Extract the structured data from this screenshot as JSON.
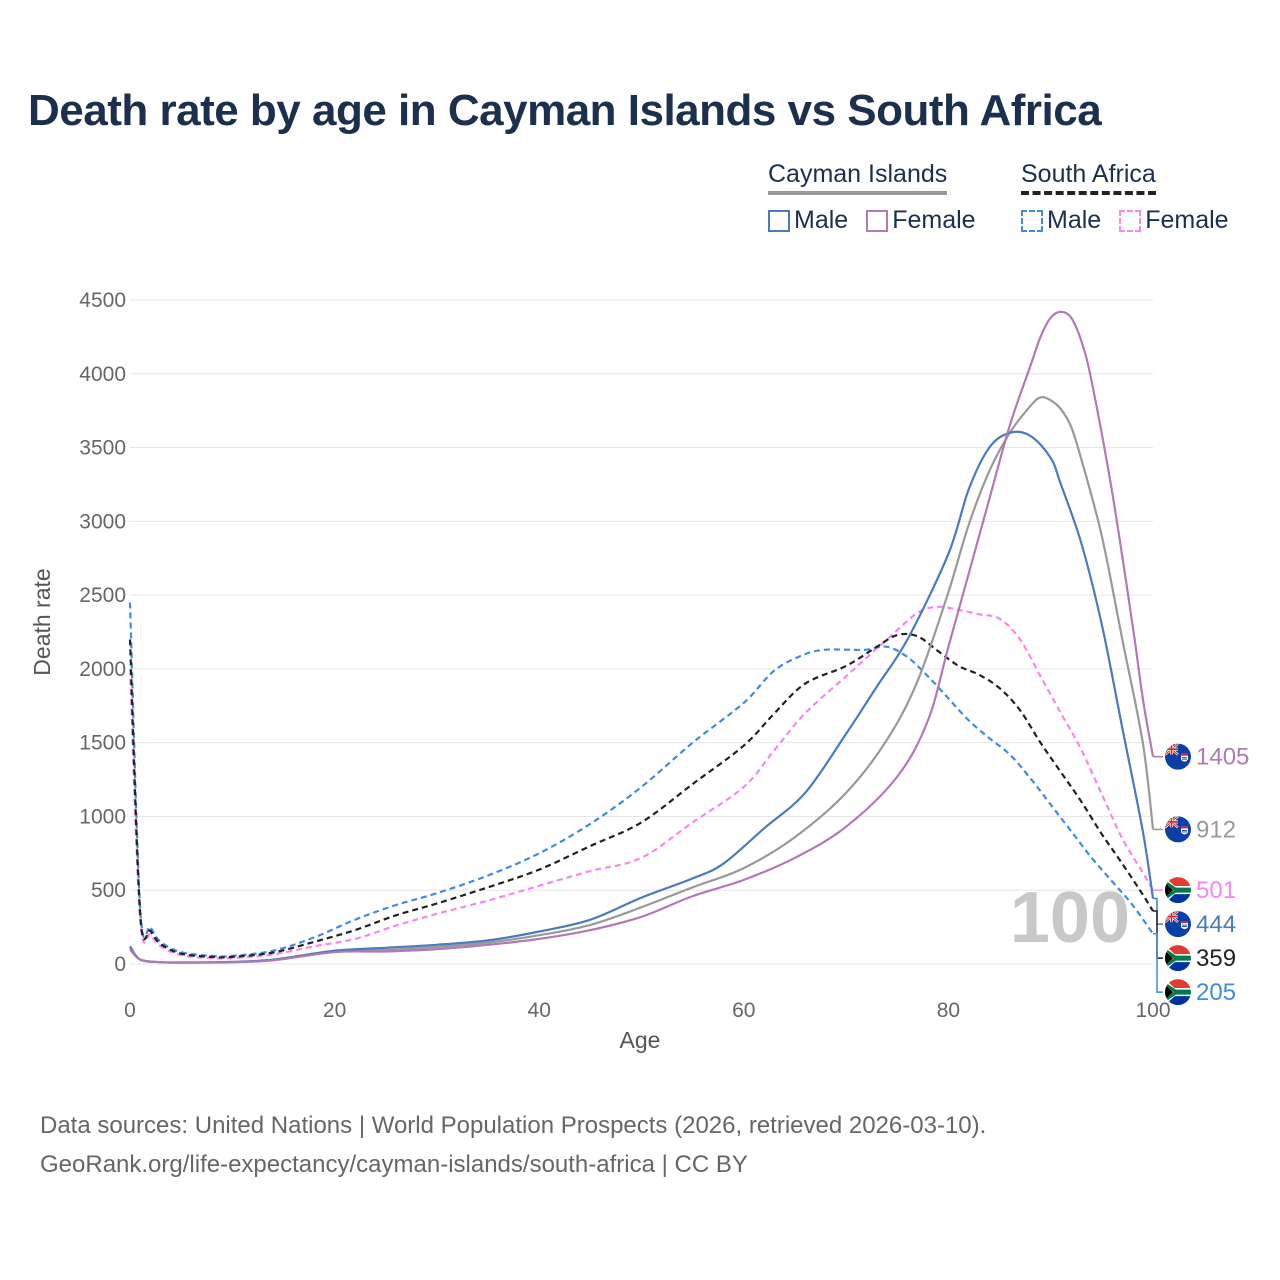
{
  "title": "Death rate by age in Cayman Islands vs South Africa",
  "legend": {
    "group1": {
      "title": "Cayman Islands",
      "male": "Male",
      "female": "Female"
    },
    "group2": {
      "title": "South Africa",
      "male": "Male",
      "female": "Female"
    }
  },
  "footer": {
    "line1": "Data sources: United Nations | World Population Prospects (2026, retrieved 2026-03-10).",
    "line2": "GeoRank.org/life-expectancy/cayman-islands/south-africa | CC BY"
  },
  "colors": {
    "cayman_male": "#4a7abf",
    "cayman_female": "#b07ab4",
    "cayman_total": "#999999",
    "sa_male": "#3f8be6",
    "sa_female": "#f787ee",
    "sa_total": "#222222"
  },
  "chart_data": {
    "type": "line",
    "xlabel": "Age",
    "ylabel": "Death rate",
    "xlim": [
      0,
      100
    ],
    "ylim": [
      0,
      4500
    ],
    "xticks": [
      0,
      20,
      40,
      60,
      80,
      100
    ],
    "yticks": [
      0,
      500,
      1000,
      1500,
      2000,
      2500,
      3000,
      3500,
      4000,
      4500
    ],
    "watermark": "100",
    "series": [
      {
        "name": "Cayman Islands Male",
        "key": "cayman_male",
        "style": "solid",
        "end_label": "444",
        "points": [
          [
            0,
            120
          ],
          [
            1,
            30
          ],
          [
            3,
            12
          ],
          [
            5,
            10
          ],
          [
            10,
            15
          ],
          [
            14,
            30
          ],
          [
            20,
            90
          ],
          [
            25,
            110
          ],
          [
            30,
            130
          ],
          [
            35,
            160
          ],
          [
            40,
            220
          ],
          [
            45,
            300
          ],
          [
            50,
            450
          ],
          [
            55,
            580
          ],
          [
            58,
            680
          ],
          [
            62,
            920
          ],
          [
            66,
            1160
          ],
          [
            70,
            1560
          ],
          [
            73,
            1880
          ],
          [
            76,
            2200
          ],
          [
            80,
            2780
          ],
          [
            82,
            3220
          ],
          [
            84,
            3500
          ],
          [
            86,
            3600
          ],
          [
            88,
            3580
          ],
          [
            90,
            3430
          ],
          [
            91,
            3250
          ],
          [
            93,
            2850
          ],
          [
            95,
            2300
          ],
          [
            97,
            1600
          ],
          [
            99,
            900
          ],
          [
            100,
            444
          ]
        ]
      },
      {
        "name": "Cayman Islands Female",
        "key": "cayman_female",
        "style": "solid",
        "end_label": "1405",
        "points": [
          [
            0,
            100
          ],
          [
            1,
            30
          ],
          [
            3,
            12
          ],
          [
            5,
            10
          ],
          [
            10,
            12
          ],
          [
            14,
            25
          ],
          [
            20,
            80
          ],
          [
            25,
            85
          ],
          [
            30,
            100
          ],
          [
            35,
            130
          ],
          [
            40,
            170
          ],
          [
            45,
            230
          ],
          [
            50,
            320
          ],
          [
            55,
            460
          ],
          [
            60,
            570
          ],
          [
            65,
            720
          ],
          [
            70,
            930
          ],
          [
            75,
            1270
          ],
          [
            78,
            1650
          ],
          [
            80,
            2150
          ],
          [
            82,
            2650
          ],
          [
            84,
            3150
          ],
          [
            86,
            3650
          ],
          [
            88,
            4050
          ],
          [
            89,
            4250
          ],
          [
            90,
            4380
          ],
          [
            91,
            4420
          ],
          [
            92,
            4380
          ],
          [
            93,
            4220
          ],
          [
            94,
            3950
          ],
          [
            96,
            3200
          ],
          [
            98,
            2300
          ],
          [
            99,
            1800
          ],
          [
            100,
            1405
          ]
        ]
      },
      {
        "name": "Cayman Islands Total",
        "key": "cayman_total",
        "style": "solid",
        "end_label": "912",
        "points": [
          [
            0,
            110
          ],
          [
            1,
            30
          ],
          [
            3,
            12
          ],
          [
            5,
            10
          ],
          [
            10,
            13
          ],
          [
            14,
            27
          ],
          [
            20,
            85
          ],
          [
            25,
            95
          ],
          [
            30,
            115
          ],
          [
            35,
            145
          ],
          [
            40,
            195
          ],
          [
            45,
            265
          ],
          [
            50,
            385
          ],
          [
            55,
            520
          ],
          [
            60,
            650
          ],
          [
            65,
            860
          ],
          [
            70,
            1160
          ],
          [
            74,
            1520
          ],
          [
            77,
            1920
          ],
          [
            80,
            2520
          ],
          [
            82,
            2980
          ],
          [
            84,
            3340
          ],
          [
            86,
            3600
          ],
          [
            88,
            3780
          ],
          [
            89,
            3840
          ],
          [
            90,
            3820
          ],
          [
            91,
            3760
          ],
          [
            92,
            3640
          ],
          [
            93,
            3420
          ],
          [
            95,
            2900
          ],
          [
            97,
            2200
          ],
          [
            99,
            1500
          ],
          [
            100,
            912
          ]
        ]
      },
      {
        "name": "South Africa Male",
        "key": "sa_male",
        "style": "dashed",
        "end_label": "205",
        "points": [
          [
            0,
            2450
          ],
          [
            1,
            370
          ],
          [
            2,
            250
          ],
          [
            3,
            150
          ],
          [
            5,
            80
          ],
          [
            8,
            55
          ],
          [
            10,
            55
          ],
          [
            14,
            90
          ],
          [
            18,
            180
          ],
          [
            22,
            300
          ],
          [
            26,
            400
          ],
          [
            30,
            480
          ],
          [
            35,
            600
          ],
          [
            40,
            750
          ],
          [
            45,
            950
          ],
          [
            50,
            1200
          ],
          [
            55,
            1500
          ],
          [
            60,
            1770
          ],
          [
            63,
            1990
          ],
          [
            66,
            2100
          ],
          [
            68,
            2130
          ],
          [
            70,
            2130
          ],
          [
            72,
            2130
          ],
          [
            74,
            2150
          ],
          [
            76,
            2080
          ],
          [
            78,
            1950
          ],
          [
            80,
            1800
          ],
          [
            82,
            1650
          ],
          [
            84,
            1530
          ],
          [
            86,
            1420
          ],
          [
            88,
            1260
          ],
          [
            90,
            1080
          ],
          [
            92,
            900
          ],
          [
            94,
            720
          ],
          [
            96,
            560
          ],
          [
            98,
            400
          ],
          [
            100,
            205
          ]
        ]
      },
      {
        "name": "South Africa Female",
        "key": "sa_female",
        "style": "dashed",
        "end_label": "501",
        "points": [
          [
            0,
            2000
          ],
          [
            1,
            300
          ],
          [
            2,
            200
          ],
          [
            3,
            120
          ],
          [
            5,
            60
          ],
          [
            8,
            40
          ],
          [
            10,
            40
          ],
          [
            14,
            65
          ],
          [
            18,
            120
          ],
          [
            22,
            170
          ],
          [
            26,
            260
          ],
          [
            30,
            340
          ],
          [
            35,
            430
          ],
          [
            40,
            530
          ],
          [
            45,
            630
          ],
          [
            50,
            720
          ],
          [
            55,
            960
          ],
          [
            60,
            1200
          ],
          [
            63,
            1450
          ],
          [
            66,
            1700
          ],
          [
            70,
            1950
          ],
          [
            74,
            2200
          ],
          [
            77,
            2380
          ],
          [
            79,
            2420
          ],
          [
            81,
            2400
          ],
          [
            83,
            2370
          ],
          [
            85,
            2340
          ],
          [
            87,
            2200
          ],
          [
            89,
            1950
          ],
          [
            91,
            1700
          ],
          [
            93,
            1450
          ],
          [
            95,
            1150
          ],
          [
            97,
            850
          ],
          [
            99,
            620
          ],
          [
            100,
            501
          ]
        ]
      },
      {
        "name": "South Africa Total",
        "key": "sa_total",
        "style": "dashed",
        "end_label": "359",
        "points": [
          [
            0,
            2200
          ],
          [
            1,
            340
          ],
          [
            2,
            225
          ],
          [
            3,
            135
          ],
          [
            5,
            70
          ],
          [
            8,
            48
          ],
          [
            10,
            48
          ],
          [
            14,
            78
          ],
          [
            18,
            150
          ],
          [
            22,
            230
          ],
          [
            26,
            330
          ],
          [
            30,
            410
          ],
          [
            35,
            520
          ],
          [
            40,
            640
          ],
          [
            45,
            800
          ],
          [
            50,
            960
          ],
          [
            55,
            1220
          ],
          [
            60,
            1480
          ],
          [
            63,
            1700
          ],
          [
            66,
            1900
          ],
          [
            70,
            2020
          ],
          [
            73,
            2150
          ],
          [
            75,
            2230
          ],
          [
            77,
            2220
          ],
          [
            79,
            2120
          ],
          [
            81,
            2020
          ],
          [
            83,
            1960
          ],
          [
            85,
            1870
          ],
          [
            87,
            1720
          ],
          [
            89,
            1500
          ],
          [
            91,
            1300
          ],
          [
            93,
            1100
          ],
          [
            95,
            880
          ],
          [
            97,
            680
          ],
          [
            99,
            470
          ],
          [
            100,
            359
          ]
        ]
      }
    ]
  }
}
